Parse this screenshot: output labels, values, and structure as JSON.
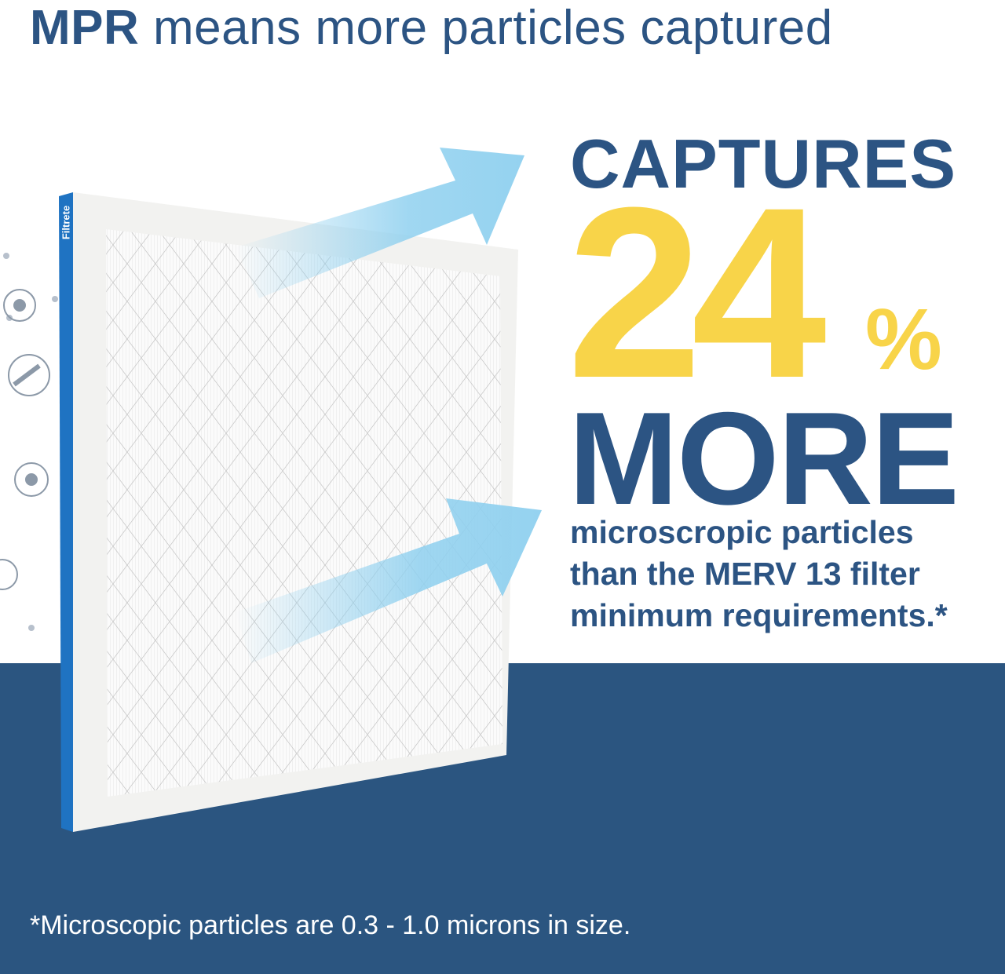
{
  "headline": {
    "bold": "MPR",
    "rest": "means more particles captured"
  },
  "claim": {
    "captures": "CAPTURES",
    "number": "24",
    "percent": "%",
    "more": "MORE",
    "lines": [
      "microscropic particles",
      "than the MERV 13 filter",
      "minimum requirements.*"
    ]
  },
  "footnote": "*Microscopic particles are 0.3 - 1.0 microns in size.",
  "brand": "Filtrete",
  "icons": [
    "gear-particle-icon",
    "paintbrush-dust-icon",
    "gear-particle-icon",
    "particle-icon"
  ],
  "colors": {
    "navy": "#2c5483",
    "yellow": "#f8d449",
    "band": "#2b5580",
    "arrow": "#8fd0ef",
    "filter_edge": "#1f73c2"
  }
}
